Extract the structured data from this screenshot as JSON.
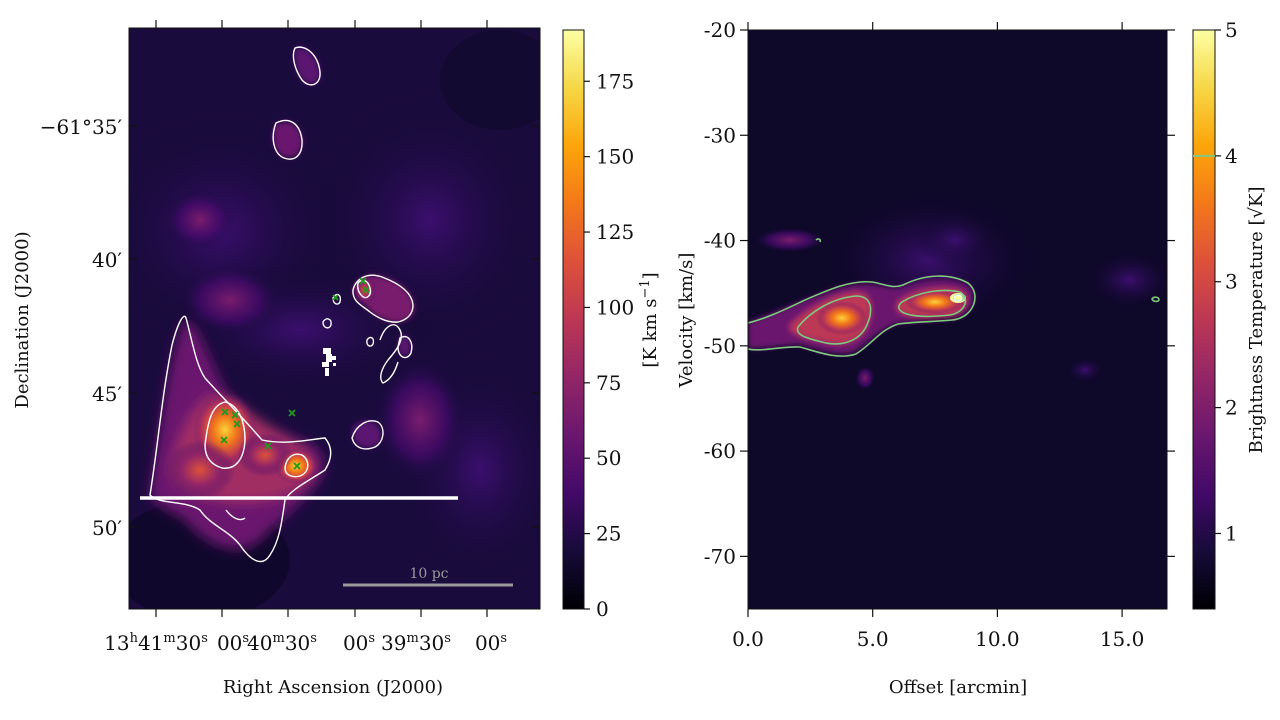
{
  "chart_data": [
    {
      "type": "heatmap",
      "name": "integrated-intensity-map",
      "xlabel": "Right Ascension (J2000)",
      "ylabel": "Declination (J2000)",
      "x_ticks": [
        {
          "h": "13",
          "m": "41",
          "s": "30"
        },
        {
          "s": "00"
        },
        {
          "m": "40",
          "s": "30"
        },
        {
          "s": "00"
        },
        {
          "m": "39",
          "s": "30"
        },
        {
          "s": "00"
        }
      ],
      "y_ticks": [
        {
          "label": "−61°35′",
          "arcmin": -35
        },
        {
          "label": "40′",
          "arcmin": -40
        },
        {
          "label": "45′",
          "arcmin": -45
        },
        {
          "label": "50′",
          "arcmin": -50
        }
      ],
      "ylim_arcmin": [
        -53,
        -31
      ],
      "colorbar": {
        "label": "[K km s⁻¹]",
        "range": [
          0,
          192
        ],
        "ticks": [
          0,
          25,
          50,
          75,
          100,
          125,
          150,
          175
        ]
      },
      "scale_bar": {
        "label": "10 pc"
      },
      "markers": "green crosses",
      "slice_line": "white horizontal line"
    },
    {
      "type": "heatmap",
      "name": "position-velocity-diagram",
      "xlabel": "Offset [arcmin]",
      "ylabel": "Velocity [km/s]",
      "x_ticks": [
        0.0,
        5.0,
        10.0,
        15.0
      ],
      "xlim": [
        0,
        16.8
      ],
      "y_ticks": [
        -20,
        -30,
        -40,
        -50,
        -60,
        -70
      ],
      "ylim": [
        -75,
        -20
      ],
      "colorbar": {
        "label": "Brightness Temperature [√K]",
        "range": [
          0.4,
          5
        ],
        "ticks": [
          1,
          2,
          3,
          4,
          5
        ],
        "contour_mark": 4
      }
    }
  ],
  "colors": {
    "cmap_low": "#000004",
    "cmap_high": "#fcffa4",
    "contour_left": "#ffffff",
    "contour_right": "#7fc97f",
    "marker": "#1f9a1f",
    "scale_bar": "#9a9a9a"
  }
}
